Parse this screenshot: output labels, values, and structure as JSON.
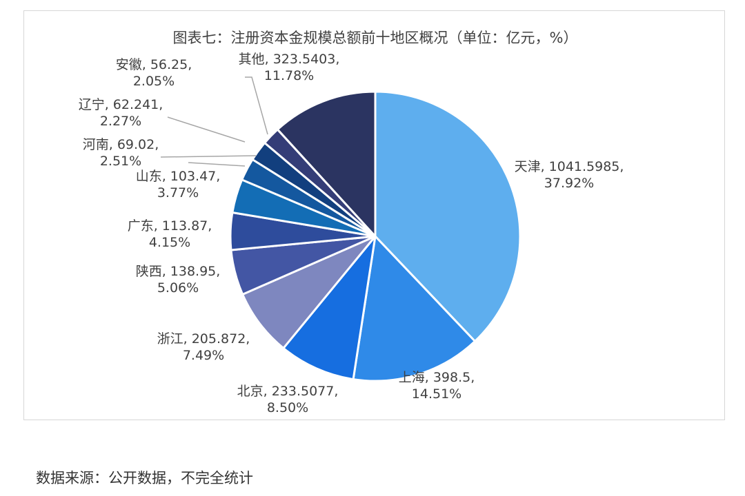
{
  "chart_data": {
    "type": "pie",
    "title": "图表七：注册资本金规模总额前十地区概况（单位：亿元，%）",
    "slices": [
      {
        "label": "天津",
        "value": "1041.5985",
        "percent": "37.92%",
        "color": "#5eaeee"
      },
      {
        "label": "上海",
        "value": "398.5",
        "percent": "14.51%",
        "color": "#2f8ae8"
      },
      {
        "label": "北京",
        "value": "233.5077",
        "percent": "8.50%",
        "color": "#166ee0"
      },
      {
        "label": "浙江",
        "value": "205.872",
        "percent": "7.49%",
        "color": "#7e87bf"
      },
      {
        "label": "陕西",
        "value": "138.95",
        "percent": "5.06%",
        "color": "#4356a4"
      },
      {
        "label": "广东",
        "value": "113.87",
        "percent": "4.15%",
        "color": "#2e4c9c"
      },
      {
        "label": "山东",
        "value": "103.47",
        "percent": "3.77%",
        "color": "#136db5"
      },
      {
        "label": "河南",
        "value": "69.02",
        "percent": "2.51%",
        "color": "#14589f"
      },
      {
        "label": "辽宁",
        "value": "62.241",
        "percent": "2.27%",
        "color": "#123f7e"
      },
      {
        "label": "安徽",
        "value": "56.25",
        "percent": "2.05%",
        "color": "#343d77"
      },
      {
        "label": "其他",
        "value": "323.5403",
        "percent": "11.78%",
        "color": "#2b3461"
      }
    ]
  },
  "footer": {
    "source": "数据来源：公开数据，不完全统计"
  }
}
